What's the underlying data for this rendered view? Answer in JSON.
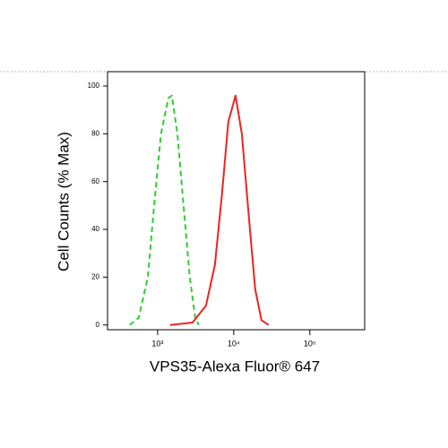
{
  "chart_data": {
    "type": "line",
    "x_label": "VPS35-Alexa Fluor® 647",
    "y_label": "Cell Counts (% Max)",
    "x_scale": "log",
    "xlim": [
      220,
      525000
    ],
    "xticks": [
      {
        "value": 1000,
        "label": "10³"
      },
      {
        "value": 10000,
        "label": "10⁴"
      },
      {
        "value": 100000,
        "label": "10⁵"
      }
    ],
    "ylim": [
      -2,
      106
    ],
    "yticks": [
      0,
      20,
      40,
      60,
      80,
      100
    ],
    "series": [
      {
        "color": "#33cc33",
        "style": "dashed",
        "x": [
          430,
          565,
          745,
          900,
          1110,
          1390,
          1540,
          1820,
          2190,
          2650,
          3120,
          3470
        ],
        "values": [
          0,
          3,
          20,
          50,
          80,
          95,
          96,
          80,
          50,
          20,
          3,
          0
        ]
      },
      {
        "color": "#ee2222",
        "style": "solid",
        "x": [
          1460,
          2880,
          4310,
          5660,
          7030,
          8500,
          10560,
          12770,
          15850,
          19150,
          23170,
          28770
        ],
        "values": [
          0,
          1,
          8,
          25,
          55,
          85,
          96,
          80,
          45,
          15,
          2,
          0
        ]
      }
    ]
  }
}
